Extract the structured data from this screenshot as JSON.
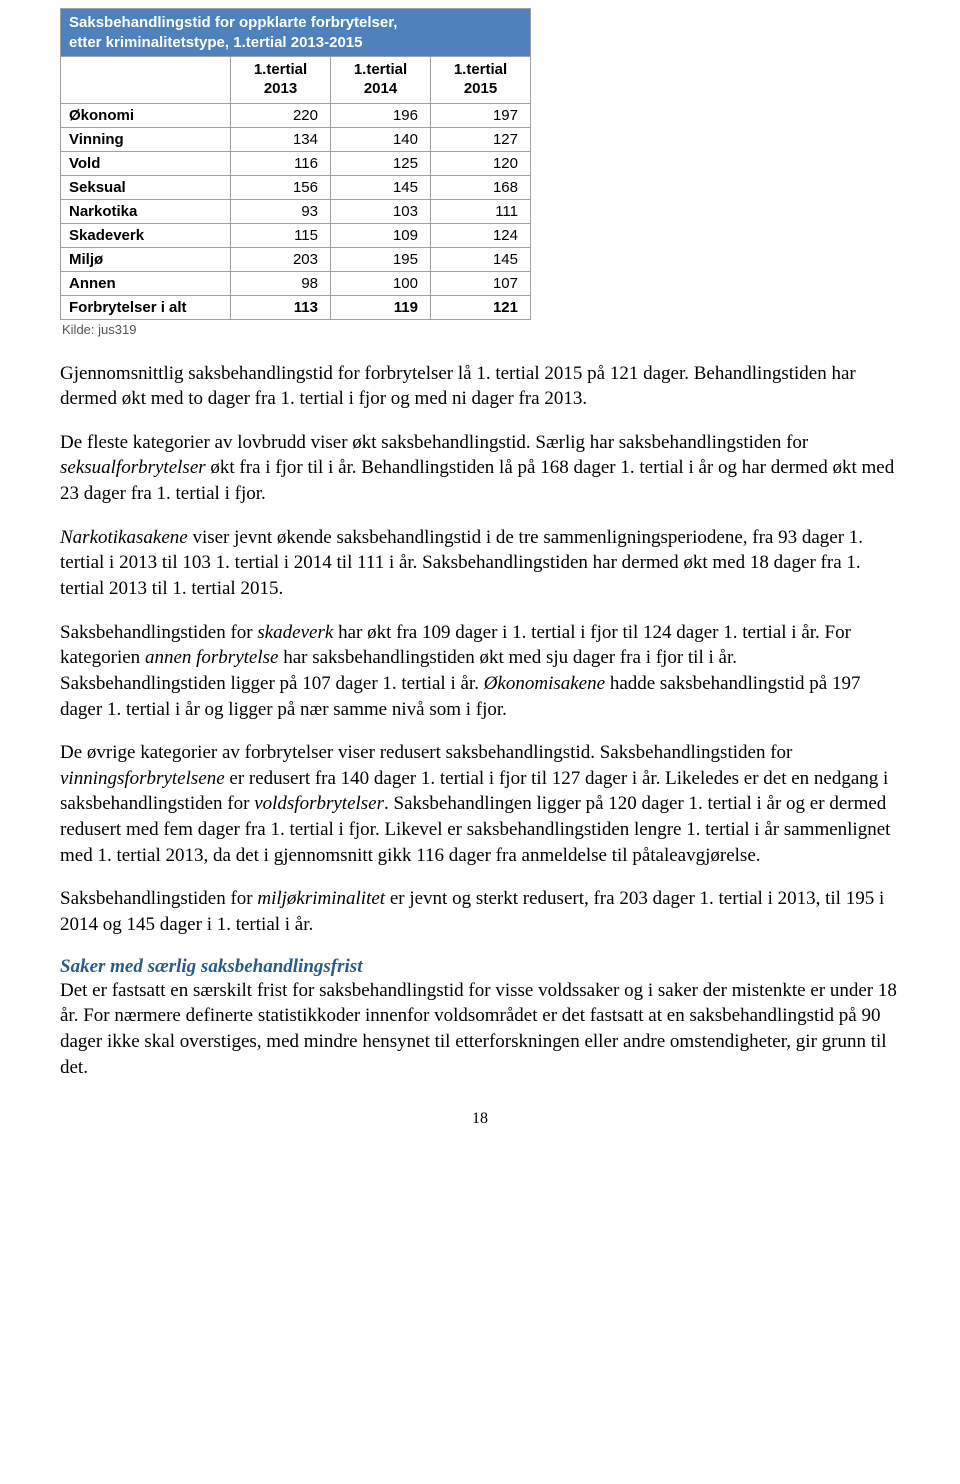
{
  "table": {
    "title_line1": "Saksbehandlingstid for oppklarte forbrytelser,",
    "title_line2": "etter kriminalitetstype, 1.tertial 2013-2015",
    "col0": "",
    "head1a": "1.tertial",
    "head1b": "2013",
    "head2a": "1.tertial",
    "head2b": "2014",
    "head3a": "1.tertial",
    "head3b": "2015",
    "rows": [
      {
        "label": "Økonomi",
        "v1": "220",
        "v2": "196",
        "v3": "197"
      },
      {
        "label": "Vinning",
        "v1": "134",
        "v2": "140",
        "v3": "127"
      },
      {
        "label": "Vold",
        "v1": "116",
        "v2": "125",
        "v3": "120"
      },
      {
        "label": "Seksual",
        "v1": "156",
        "v2": "145",
        "v3": "168"
      },
      {
        "label": "Narkotika",
        "v1": "93",
        "v2": "103",
        "v3": "111"
      },
      {
        "label": "Skadeverk",
        "v1": "115",
        "v2": "109",
        "v3": "124"
      },
      {
        "label": "Miljø",
        "v1": "203",
        "v2": "195",
        "v3": "145"
      },
      {
        "label": "Annen",
        "v1": "98",
        "v2": "100",
        "v3": "107"
      }
    ],
    "total": {
      "label": "Forbrytelser i alt",
      "v1": "113",
      "v2": "119",
      "v3": "121"
    },
    "source": "Kilde: jus319",
    "col_widths": {
      "c0": 170,
      "c": 100
    },
    "colors": {
      "header_bg": "#4f81bd",
      "header_fg": "#ffffff",
      "border": "#a0a0a0"
    }
  },
  "paragraphs": {
    "p1": "Gjennomsnittlig saksbehandlingstid for forbrytelser lå 1. tertial 2015 på 121 dager. Behandlingstiden har dermed økt med to dager fra 1. tertial i fjor og med ni dager fra 2013.",
    "p2": "De fleste kategorier av lovbrudd viser økt saksbehandlingstid. Særlig har saksbehandlingstiden for ",
    "p2i": "seksualforbrytelser",
    "p2b": " økt fra i fjor til i år. Behandlingstiden lå på 168 dager 1. tertial i år og har dermed økt med 23 dager fra 1. tertial i fjor.",
    "p3a": "Narkotikasakene",
    "p3b": " viser jevnt økende saksbehandlingstid i de tre sammenligningsperiodene, fra 93 dager 1. tertial i 2013 til 103 1. tertial i 2014 til 111 i år. Saksbehandlingstiden har dermed økt med 18 dager fra 1. tertial 2013 til 1. tertial 2015.",
    "p4a": "Saksbehandlingstiden for ",
    "p4i1": "skadeverk",
    "p4b": " har økt fra 109 dager i 1. tertial i fjor til 124 dager 1. tertial i år. For kategorien ",
    "p4i2": "annen forbrytelse",
    "p4c": " har saksbehandlingstiden økt med sju dager fra i fjor til i år. Saksbehandlingstiden ligger på 107 dager 1. tertial i år. ",
    "p4i3": "Økonomisakene",
    "p4d": " hadde saksbehandlingstid på 197 dager 1. tertial i år og ligger på nær samme nivå som i fjor.",
    "p5a": "De øvrige kategorier av forbrytelser viser redusert saksbehandlingstid. Saksbehandlingstiden for ",
    "p5i1": "vinningsforbrytelsene",
    "p5b": " er redusert fra 140 dager 1. tertial i fjor til 127 dager i år. Likeledes er det en nedgang i saksbehandlingstiden for ",
    "p5i2": "voldsforbrytelser",
    "p5c": ". Saksbehandlingen ligger på 120 dager 1. tertial i år og er dermed redusert med fem dager fra 1. tertial i fjor. Likevel er saksbehandlingstiden lengre 1. tertial i år sammenlignet med 1. tertial 2013, da det i gjennomsnitt gikk 116 dager fra anmeldelse til påtaleavgjørelse.",
    "p6a": "Saksbehandlingstiden for ",
    "p6i": "miljøkriminalitet",
    "p6b": " er jevnt og sterkt redusert, fra 203 dager 1. tertial i 2013, til 195 i 2014 og 145 dager i 1. tertial i år.",
    "heading": "Saker med særlig saksbehandlingsfrist",
    "p7": "Det er fastsatt en særskilt frist for saksbehandlingstid for visse voldssaker og i saker der mistenkte er under 18 år. For nærmere definerte statistikkoder innenfor voldsområdet er det fastsatt at en saksbehandlingstid på 90 dager ikke skal overstiges, med mindre hensynet til etterforskningen eller andre omstendigheter, gir grunn til det."
  },
  "page_number": "18"
}
